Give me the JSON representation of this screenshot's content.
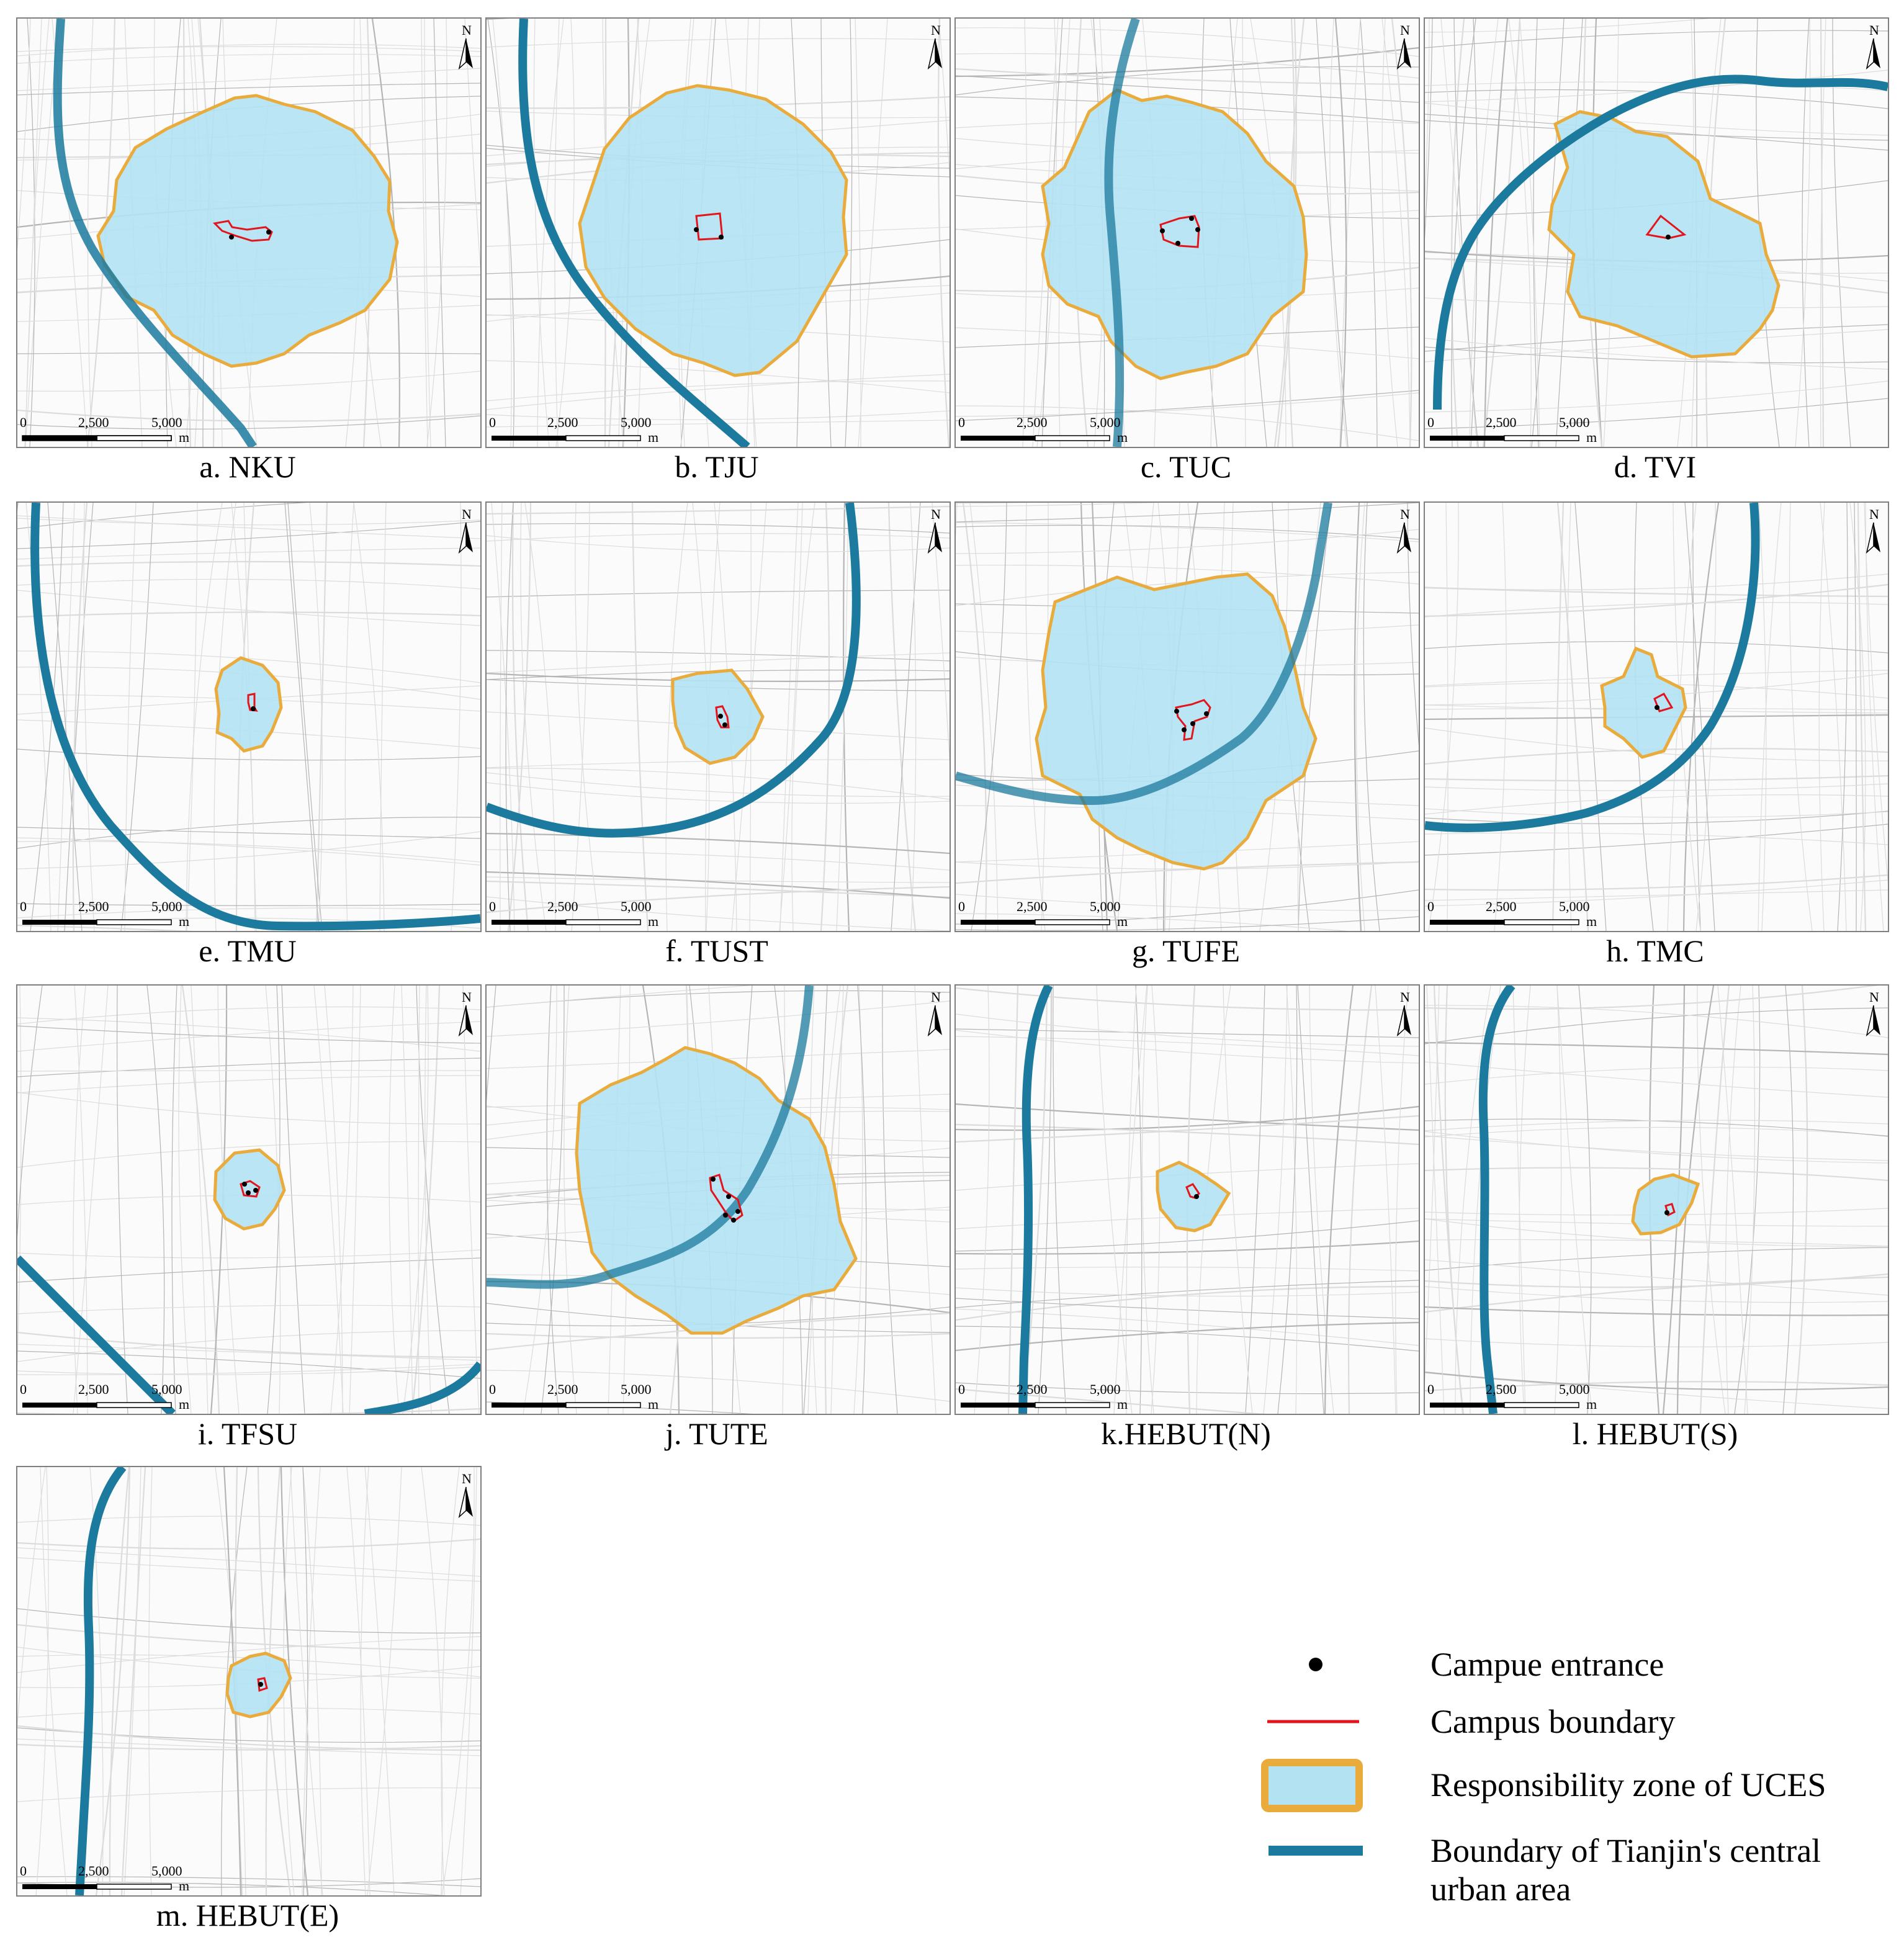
{
  "panels": [
    {
      "id": "a",
      "caption": "a. NKU"
    },
    {
      "id": "b",
      "caption": "b. TJU"
    },
    {
      "id": "c",
      "caption": "c. TUC"
    },
    {
      "id": "d",
      "caption": "d. TVI"
    },
    {
      "id": "e",
      "caption": "e. TMU"
    },
    {
      "id": "f",
      "caption": "f. TUST"
    },
    {
      "id": "g",
      "caption": "g. TUFE"
    },
    {
      "id": "h",
      "caption": "h. TMC"
    },
    {
      "id": "i",
      "caption": "i. TFSU"
    },
    {
      "id": "j",
      "caption": "j. TUTE"
    },
    {
      "id": "k",
      "caption": "k.HEBUT(N)"
    },
    {
      "id": "l",
      "caption": "l. HEBUT(S)"
    },
    {
      "id": "m",
      "caption": "m. HEBUT(E)"
    }
  ],
  "map_common": {
    "north_label": "N",
    "scale_ticks": [
      "0",
      "2,500",
      "5,000"
    ],
    "scale_unit": "m"
  },
  "legend": {
    "entrance": "Campue entrance",
    "boundary": "Campus boundary",
    "zone": "Responsibility zone of UCES",
    "central_boundary_line1": "Boundary of Tianjin's central",
    "central_boundary_line2": "urban area"
  },
  "colors": {
    "zone_fill": "#b3e2f3",
    "zone_outline": "#e9ab3c",
    "campus_boundary": "#e2141c",
    "entrance": "#000000",
    "urban_boundary": "#1b7a9d",
    "roads": "#c9c9c9"
  }
}
